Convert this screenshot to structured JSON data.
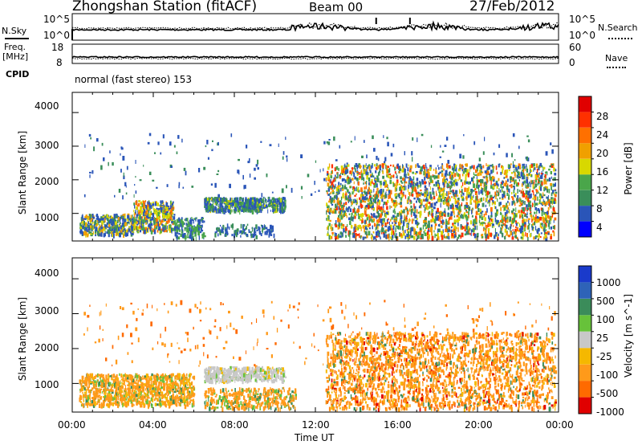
{
  "header": {
    "station": "Zhongshan Station (fitACF)",
    "beam": "Beam 00",
    "date": "27/Feb/2012"
  },
  "top_panels": {
    "nsky_label": "N.Sky",
    "nsky_ticks": [
      "10^5",
      "10^0"
    ],
    "nsearch_label": "N.Search",
    "nsearch_ticks": [
      "10^5",
      "10^0"
    ],
    "freq_label_1": "Freq.",
    "freq_label_2": "[MHz]",
    "freq_ticks": [
      "18",
      "8"
    ],
    "nave_label": "Nave",
    "nave_ticks": [
      "60",
      "0"
    ],
    "cpid_label": "CPID",
    "cpid_text": "normal (fast stereo) 153"
  },
  "colors": {
    "power_scale": [
      "#0000ff",
      "#2a55b8",
      "#3a8e5a",
      "#4aa64a",
      "#d8d800",
      "#f0a000",
      "#ff7000",
      "#ff3000",
      "#e00000"
    ],
    "velocity_scale": [
      "#1a3acb",
      "#2e63b8",
      "#3b8c5a",
      "#67c23a",
      "#c8c8c8",
      "#f5b800",
      "#ff9a1a",
      "#ff6a00",
      "#e00000"
    ]
  },
  "chart_data": [
    {
      "type": "heatmap",
      "panel": "power",
      "ylabel": "Slant Range [km]",
      "yticks": [
        "4000",
        "3000",
        "2000",
        "1000"
      ],
      "ylim": [
        180,
        4600
      ],
      "xlim": [
        "00:00",
        "24:00"
      ],
      "colorbar_label": "Power [dB]",
      "colorbar_ticks": [
        "28",
        "24",
        "20",
        "16",
        "12",
        "8",
        "4"
      ],
      "colorbar_range": [
        0,
        30
      ],
      "features": [
        {
          "time_start": "00:20",
          "time_end": "03:00",
          "range_km": [
            400,
            1000
          ],
          "level": "moderate"
        },
        {
          "time_start": "03:00",
          "time_end": "05:00",
          "range_km": [
            500,
            1400
          ],
          "level": "strong"
        },
        {
          "time_start": "06:30",
          "time_end": "10:30",
          "range_km": [
            1100,
            1500
          ],
          "level": "moderate"
        },
        {
          "time_start": "12:30",
          "time_end": "23:50",
          "range_km": [
            300,
            2500
          ],
          "level": "strong"
        }
      ]
    },
    {
      "type": "heatmap",
      "panel": "velocity",
      "ylabel": "Slant Range [km]",
      "yticks": [
        "4000",
        "3000",
        "2000",
        "1000"
      ],
      "ylim": [
        180,
        4600
      ],
      "xlim": [
        "00:00",
        "24:00"
      ],
      "xticks": [
        "00:00",
        "04:00",
        "08:00",
        "12:00",
        "16:00",
        "20:00",
        "00:00"
      ],
      "xlabel": "Time UT",
      "colorbar_label": "Velocity [m s^-1]",
      "colorbar_ticks": [
        "1000",
        "500",
        "100",
        "25",
        "-25",
        "-100",
        "-500",
        "-1000"
      ],
      "features": [
        {
          "time_start": "00:20",
          "time_end": "06:00",
          "range_km": [
            400,
            1300
          ],
          "velocity": "-100 to -500"
        },
        {
          "time_start": "06:30",
          "time_end": "10:30",
          "range_km": [
            1100,
            1500
          ],
          "velocity": "-25 to 25"
        },
        {
          "time_start": "12:30",
          "time_end": "23:50",
          "range_km": [
            300,
            2500
          ],
          "velocity": "-100 to -500"
        }
      ]
    }
  ]
}
